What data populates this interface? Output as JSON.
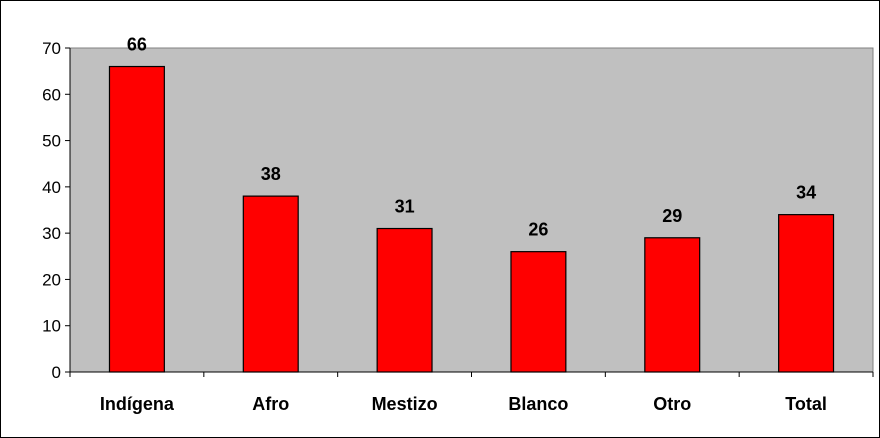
{
  "chart_data": {
    "type": "bar",
    "categories": [
      "Indígena",
      "Afro",
      "Mestizo",
      "Blanco",
      "Otro",
      "Total"
    ],
    "values": [
      66,
      38,
      31,
      26,
      29,
      34
    ],
    "data_labels": [
      "66",
      "38",
      "31",
      "26",
      "29",
      "34"
    ],
    "yticks": [
      "0",
      "10",
      "20",
      "30",
      "40",
      "50",
      "60",
      "70"
    ],
    "ylim": [
      0,
      70
    ],
    "title": "",
    "xlabel": "",
    "ylabel": "",
    "grid": false,
    "legend": "none",
    "colors": {
      "bar": "#ff0000",
      "plot_area": "#c0c0c0",
      "border": "#000000"
    }
  }
}
